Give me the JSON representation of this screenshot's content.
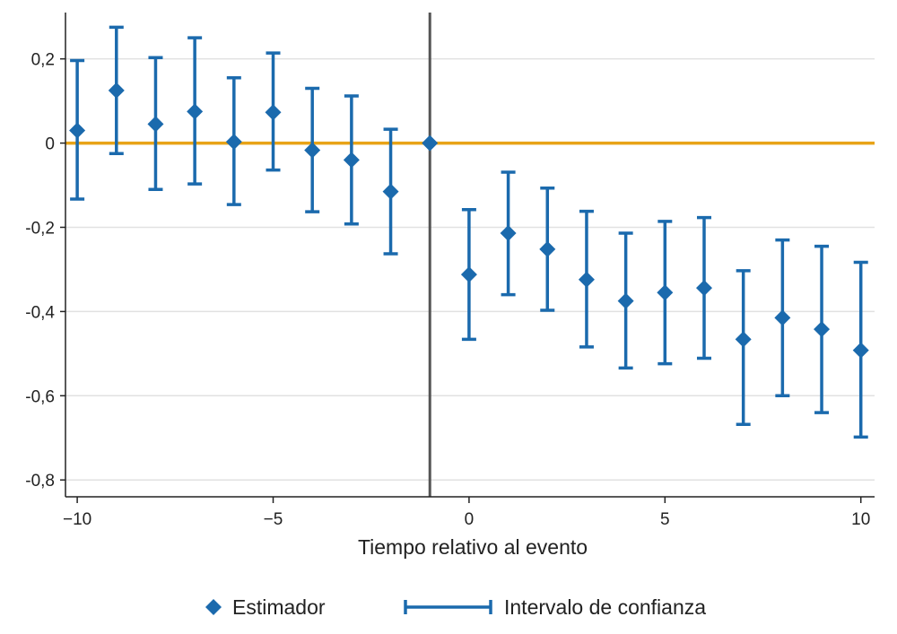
{
  "chart_data": {
    "type": "scatter",
    "title": "",
    "xlabel": "Tiempo relativo al evento",
    "ylabel": "",
    "xlim": [
      -10.3,
      10.35
    ],
    "ylim": [
      -0.84,
      0.31
    ],
    "xticks": [
      -10,
      -5,
      0,
      5,
      10
    ],
    "xtick_labels": [
      "−10",
      "−5",
      "0",
      "5",
      "10"
    ],
    "yticks": [
      0.2,
      0,
      -0.2,
      -0.4,
      -0.6,
      -0.8
    ],
    "ytick_labels": [
      "0,2",
      "0",
      "-0,2",
      "-0,4",
      "-0,6",
      "-0,8"
    ],
    "grid": "horizontal",
    "reference_lines": {
      "horizontal_y": 0,
      "vertical_x": -1
    },
    "legend_position": "bottom",
    "series": [
      {
        "name": "Estimador",
        "x": [
          -10,
          -9,
          -8,
          -7,
          -6,
          -5,
          -4,
          -3,
          -2,
          -1,
          0,
          1,
          2,
          3,
          4,
          5,
          6,
          7,
          8,
          9,
          10
        ],
        "y": [
          0.03,
          0.125,
          0.045,
          0.075,
          0.003,
          0.073,
          -0.017,
          -0.04,
          -0.115,
          0.0,
          -0.312,
          -0.214,
          -0.252,
          -0.324,
          -0.375,
          -0.355,
          -0.344,
          -0.466,
          -0.415,
          -0.442,
          -0.492
        ]
      },
      {
        "name": "Intervalo de confianza",
        "x": [
          -10,
          -9,
          -8,
          -7,
          -6,
          -5,
          -4,
          -3,
          -2,
          -1,
          0,
          1,
          2,
          3,
          4,
          5,
          6,
          7,
          8,
          9,
          10
        ],
        "lower": [
          -0.133,
          -0.025,
          -0.11,
          -0.097,
          -0.146,
          -0.064,
          -0.163,
          -0.192,
          -0.263,
          0.0,
          -0.466,
          -0.36,
          -0.397,
          -0.484,
          -0.534,
          -0.524,
          -0.511,
          -0.668,
          -0.6,
          -0.64,
          -0.698
        ],
        "upper": [
          0.196,
          0.275,
          0.203,
          0.25,
          0.155,
          0.214,
          0.13,
          0.112,
          0.033,
          0.0,
          -0.158,
          -0.069,
          -0.107,
          -0.162,
          -0.214,
          -0.186,
          -0.177,
          -0.303,
          -0.23,
          -0.245,
          -0.283
        ]
      }
    ],
    "colors": {
      "series": "#1b6aad",
      "zero_line": "#e8a317",
      "event_line": "#555555",
      "grid": "#e1e1e1",
      "axis": "#222222"
    }
  }
}
